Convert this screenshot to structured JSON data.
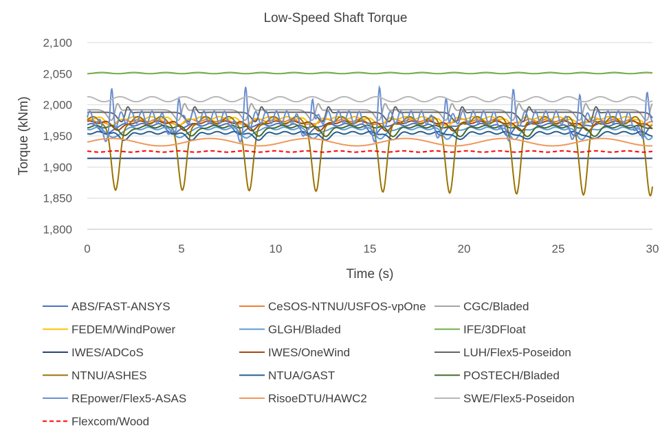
{
  "chart_data": {
    "type": "line",
    "title": "Low-Speed Shaft Torque",
    "xlabel": "Time (s)",
    "ylabel": "Torque (kNm)",
    "xlim": [
      0,
      30
    ],
    "ylim": [
      1800,
      2100
    ],
    "x_ticks": [
      0,
      5,
      10,
      15,
      20,
      25,
      30
    ],
    "y_ticks": [
      1800,
      1850,
      1900,
      1950,
      2000,
      2050,
      2100
    ],
    "x_tick_labels": [
      "0",
      "5",
      "10",
      "15",
      "20",
      "25",
      "30"
    ],
    "y_tick_labels": [
      "1,800",
      "1,850",
      "1,900",
      "1,950",
      "2,000",
      "2,050",
      "2,100"
    ],
    "grid": "horizontal",
    "legend_position": "bottom",
    "period": 3.55,
    "series": [
      {
        "name": "ABS/FAST-ANSYS",
        "color": "#4472C4",
        "style": "solid",
        "mean": 1968,
        "amplitude": 16,
        "shape": "dip"
      },
      {
        "name": "CeSOS-NTNU/USFOS-vpOne",
        "color": "#ED7D31",
        "style": "solid",
        "mean": 1975,
        "amplitude": 8,
        "shape": "dip"
      },
      {
        "name": "CGC/Bladed",
        "color": "#A5A5A5",
        "style": "solid",
        "mean": 1992,
        "amplitude": 20,
        "shape": "spike"
      },
      {
        "name": "FEDEM/WindPower",
        "color": "#FFC000",
        "style": "solid",
        "mean": 1979,
        "amplitude": 12,
        "shape": "dip"
      },
      {
        "name": "GLGH/Bladed",
        "color": "#5B9BD5",
        "style": "solid",
        "mean": 1962,
        "amplitude": 16,
        "shape": "dip"
      },
      {
        "name": "IFE/3DFloat",
        "color": "#70AD47",
        "style": "solid",
        "mean": 2051,
        "amplitude": 1,
        "shape": "flat"
      },
      {
        "name": "IWES/ADCoS",
        "color": "#264478",
        "style": "solid",
        "mean": 1914,
        "amplitude": 0,
        "shape": "flat"
      },
      {
        "name": "IWES/OneWind",
        "color": "#9E480E",
        "style": "solid",
        "mean": 1972,
        "amplitude": 12,
        "shape": "dip"
      },
      {
        "name": "LUH/Flex5-Poseidon",
        "color": "#636363",
        "style": "solid",
        "mean": 1988,
        "amplitude": 18,
        "shape": "spike"
      },
      {
        "name": "NTNU/ASHES",
        "color": "#997300",
        "style": "solid",
        "mean": 1975,
        "amplitude": 118,
        "shape": "deepdip"
      },
      {
        "name": "NTUA/GAST",
        "color": "#255E91",
        "style": "solid",
        "mean": 1955,
        "amplitude": 10,
        "shape": "dip"
      },
      {
        "name": "POSTECH/Bladed",
        "color": "#43682B",
        "style": "solid",
        "mean": 1965,
        "amplitude": 14,
        "shape": "dip"
      },
      {
        "name": "REpower/Flex5-ASAS",
        "color": "#698ED0",
        "style": "solid",
        "mean": 1980,
        "amplitude": 60,
        "shape": "oscillating"
      },
      {
        "name": "RisoeDTU/HAWC2",
        "color": "#F1975A",
        "style": "solid",
        "mean": 1940,
        "amplitude": 6,
        "shape": "slow"
      },
      {
        "name": "SWE/Flex5-Poseidon",
        "color": "#B7B7B7",
        "style": "solid",
        "mean": 2009,
        "amplitude": 4,
        "shape": "flat"
      },
      {
        "name": "Flexcom/Wood",
        "color": "#FF0000",
        "style": "dashed",
        "mean": 1925,
        "amplitude": 1,
        "shape": "flat"
      }
    ]
  }
}
